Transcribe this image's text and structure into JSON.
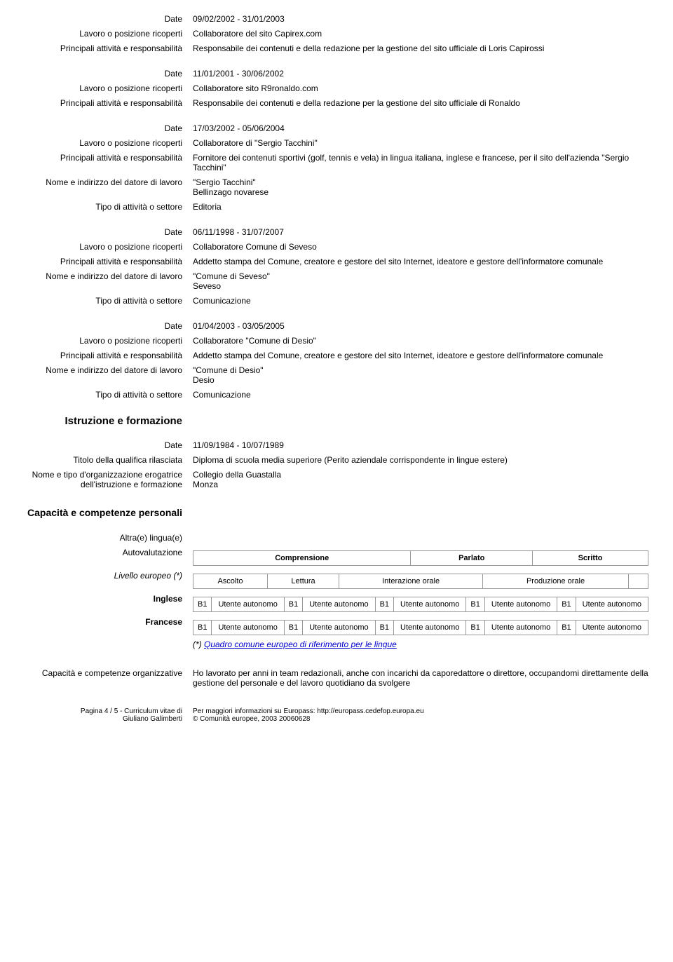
{
  "labels": {
    "date": "Date",
    "pos": "Lavoro o posizione ricoperti",
    "act": "Principali attività e responsabilità",
    "emp": "Nome e indirizzo del datore di lavoro",
    "typ": "Tipo di attività o settore",
    "edu": "Istruzione e formazione",
    "qual": "Titolo della qualifica rilasciata",
    "org": "Nome e tipo d'organizzazione erogatrice dell'istruzione e formazione",
    "skills": "Capacità e competenze personali",
    "lang": "Altra(e) lingua(e)",
    "self": "Autovalutazione",
    "level": "Livello europeo (*)",
    "en": "Inglese",
    "fr": "Francese",
    "orgsk": "Capacità e competenze organizzative"
  },
  "jobs": [
    {
      "d": "09/02/2002 - 31/01/2003",
      "p": "Collaboratore del sito Capirex.com",
      "a": "Responsabile dei contenuti e della redazione per la gestione del sito ufficiale di Loris Capirossi"
    },
    {
      "d": "11/01/2001 - 30/06/2002",
      "p": "Collaboratore sito R9ronaldo.com",
      "a": "Responsabile dei contenuti e della redazione per la gestione del sito ufficiale di Ronaldo"
    },
    {
      "d": "17/03/2002 - 05/06/2004",
      "p": "Collaboratore di \"Sergio Tacchini\"",
      "a": "Fornitore dei contenuti sportivi (golf, tennis e vela) in lingua italiana, inglese e francese, per il sito dell'azienda \"Sergio Tacchini\"",
      "e": "\"Sergio Tacchini\"",
      "e2": "Bellinzago novarese",
      "t": "Editoria"
    },
    {
      "d": "06/11/1998 - 31/07/2007",
      "p": "Collaboratore Comune di Seveso",
      "a": "Addetto stampa del Comune, creatore e gestore del sito Internet, ideatore e gestore dell'informatore comunale",
      "e": "\"Comune di Seveso\"",
      "e2": "Seveso",
      "t": "Comunicazione"
    },
    {
      "d": "01/04/2003 - 03/05/2005",
      "p": "Collaboratore \"Comune di Desio\"",
      "a": "Addetto stampa del Comune, creatore e gestore del sito Internet, ideatore e gestore dell'informatore comunale",
      "e": "\"Comune di Desio\"",
      "e2": "Desio",
      "t": "Comunicazione"
    }
  ],
  "edu": {
    "d": "11/09/1984 - 10/07/1989",
    "q": "Diploma di scuola media superiore (Perito aziendale corrispondente in lingue estere)",
    "o": "Collegio della Guastalla",
    "o2": "Monza"
  },
  "tbl": {
    "h": [
      "Comprensione",
      "Parlato",
      "Scritto"
    ],
    "sh": [
      "Ascolto",
      "Lettura",
      "Interazione orale",
      "Produzione orale"
    ],
    "c": "B1",
    "v": "Utente autonomo",
    "note": "(*) ",
    "link": "Quadro comune europeo di riferimento per le lingue"
  },
  "org": "Ho lavorato per anni in team redazionali, anche con incarichi da caporedattore o direttore, occupandomi direttamente della gestione del personale e del lavoro quotidiano da svolgere",
  "ft": {
    "l1": "Pagina 4 / 5 - Curriculum vitae di",
    "l2": "Giuliano Galimberti",
    "r1": "Per maggiori informazioni su Europass: http://europass.cedefop.europa.eu",
    "r2": "© Comunità europee, 2003 20060628"
  }
}
